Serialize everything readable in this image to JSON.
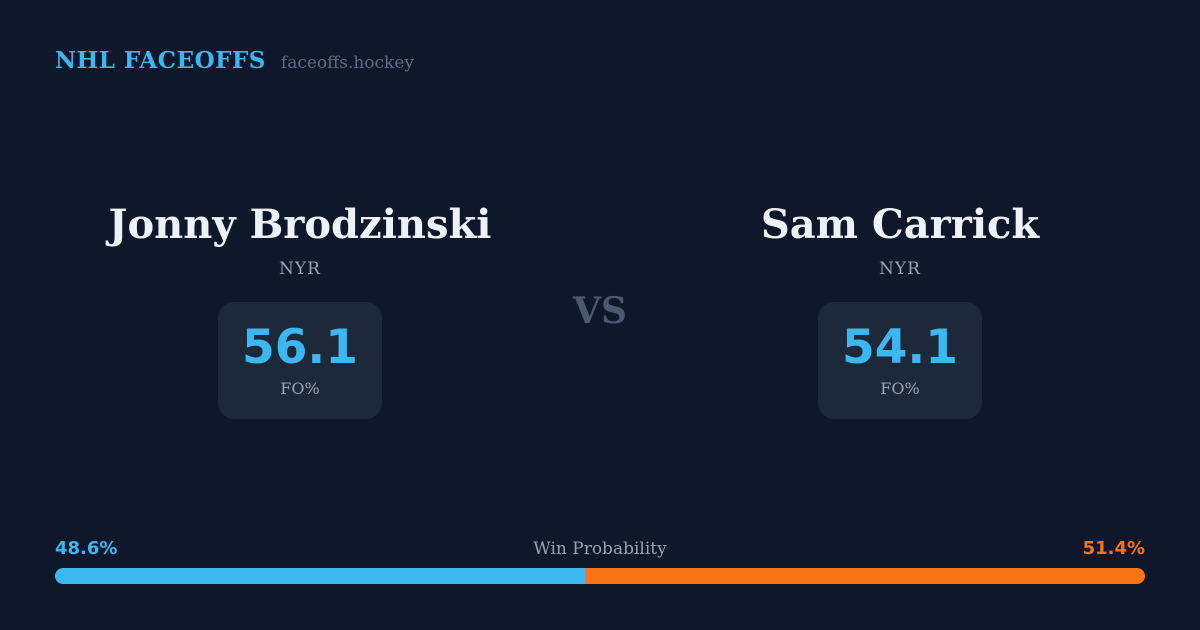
{
  "header": {
    "brand": "NHL FACEOFFS",
    "site": "faceoffs.hockey"
  },
  "matchup": {
    "vs_label": "VS",
    "players": [
      {
        "name": "Jonny Brodzinski",
        "team": "NYR",
        "stat_value": "56.1",
        "stat_label": "FO%"
      },
      {
        "name": "Sam Carrick",
        "team": "NYR",
        "stat_value": "54.1",
        "stat_label": "FO%"
      }
    ]
  },
  "win_probability": {
    "label": "Win Probability",
    "left_pct_label": "48.6%",
    "right_pct_label": "51.4%",
    "left_value": 48.6,
    "right_value": 51.4
  },
  "colors": {
    "background": "#0f172a",
    "card_background": "#1d2938",
    "accent_blue": "#3bb7f2",
    "accent_orange": "#f97316",
    "muted_text": "#94a3b8",
    "site_text": "#5d6d84",
    "vs_text": "#4a5870",
    "name_text": "#edf2f7"
  }
}
